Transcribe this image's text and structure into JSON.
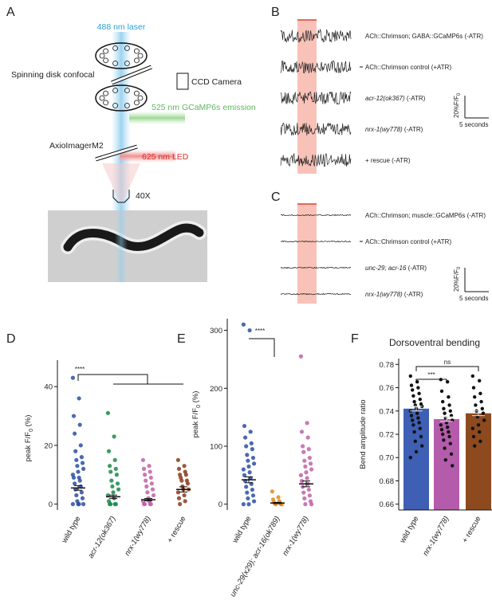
{
  "panel_a": {
    "letter": "A",
    "laser": "488 nm laser",
    "confocal": "Spinning disk confocal",
    "emission": "525 nm GCaMP6s emission",
    "camera": "CCD Camera",
    "microscope": "AxioImagerM2",
    "led": "625 nm LED",
    "objective": "40X"
  },
  "panel_b": {
    "letter": "B",
    "rows": [
      {
        "gene": "",
        "rest": "ACh::Chrimson; GABA::GCaMP6s (-ATR)"
      },
      {
        "gene": "",
        "rest": "ACh::Chrimson control (+ATR)"
      },
      {
        "gene": "acr-12(ok367)",
        "rest": " (-ATR)"
      },
      {
        "gene": "nrx-1(wy778)",
        "rest": " (-ATR)"
      },
      {
        "gene": "",
        "rest": "+ rescue (-ATR)"
      }
    ],
    "scale_y": "20%",
    "scale_unit": "F/F",
    "scale_sub": "0",
    "scale_x": "5 seconds"
  },
  "panel_c": {
    "letter": "C",
    "rows": [
      {
        "gene": "",
        "rest": "ACh::Chrimson; muscle::GCaMP6s (-ATR)"
      },
      {
        "gene": "",
        "rest": "ACh::Chrimson control (+ATR)"
      },
      {
        "gene": "unc-29; acr-16",
        "rest": " (-ATR)"
      },
      {
        "gene": "nrx-1(wy778)",
        "rest": " (-ATR)"
      }
    ],
    "scale_y": "20%",
    "scale_unit": "F/F",
    "scale_sub": "0",
    "scale_x": "5 seconds"
  },
  "chart_data": [
    {
      "type": "strip",
      "letter": "D",
      "ylabel": "peak  F/F",
      "ylabel_sub": "0",
      "ylabel_unit": " (%)",
      "categories": [
        "wild type",
        "acr-12(ok367)",
        "nrx-1(wy778)",
        "+ rescue"
      ],
      "colors": [
        "#2b4fa2",
        "#1a8a4a",
        "#c060a8",
        "#8b3a1a"
      ],
      "points": [
        [
          43,
          36,
          30,
          27,
          24,
          20,
          18,
          16,
          15,
          14,
          13,
          12,
          11,
          10,
          9,
          9,
          8,
          7,
          6,
          5,
          4,
          3,
          2,
          1,
          0,
          0,
          0,
          0
        ],
        [
          31,
          23,
          18,
          15,
          13,
          12,
          11,
          10,
          8,
          7,
          6,
          5,
          4,
          3,
          2,
          1,
          0,
          0,
          0,
          0
        ],
        [
          15,
          13,
          12,
          11,
          10,
          9,
          8,
          7,
          6,
          5,
          4,
          3,
          2,
          1,
          1,
          0,
          0,
          0,
          0
        ],
        [
          15,
          13,
          12,
          11,
          10,
          10,
          9,
          8,
          8,
          7,
          6,
          5,
          5,
          4,
          3,
          2,
          1,
          0
        ]
      ],
      "means": [
        5.5,
        2.5,
        1.5,
        5
      ],
      "errors": [
        0.8,
        0.6,
        0.4,
        0.9
      ],
      "ylim": [
        -2,
        49
      ],
      "yticks": [
        0,
        20,
        40
      ],
      "significance": "****"
    },
    {
      "type": "strip",
      "letter": "E",
      "ylabel": "peak  F/F",
      "ylabel_sub": "0",
      "ylabel_unit": " (%)",
      "categories": [
        "wild type",
        "unc-29(x29); acr-16(ok789)",
        "nrx-1(wy778)"
      ],
      "colors": [
        "#2b4fa2",
        "#e08a1e",
        "#c060a8"
      ],
      "points": [
        [
          310,
          300,
          135,
          125,
          115,
          105,
          100,
          95,
          85,
          80,
          75,
          70,
          65,
          60,
          55,
          50,
          45,
          40,
          35,
          30,
          25,
          20,
          15,
          10,
          5,
          0,
          0
        ],
        [
          22,
          12,
          8,
          5,
          3,
          2,
          1,
          0,
          0,
          0
        ],
        [
          255,
          140,
          125,
          115,
          100,
          95,
          90,
          80,
          75,
          70,
          65,
          60,
          55,
          50,
          45,
          40,
          35,
          30,
          25,
          20,
          15,
          10,
          5,
          0,
          0
        ]
      ],
      "means": [
        42,
        2,
        35
      ],
      "errors": [
        5,
        1,
        5
      ],
      "ylim": [
        -10,
        320
      ],
      "yticks": [
        0,
        100,
        200,
        300
      ],
      "significance": "****"
    },
    {
      "type": "bar",
      "letter": "F",
      "title": "Dorsoventral bending",
      "ylabel": "Bend amplitude ratio",
      "categories": [
        "wild type",
        "nrx-1(wy778)",
        "+ rescue"
      ],
      "colors": [
        "#3f5fb5",
        "#b45cab",
        "#8d4a1e"
      ],
      "points": [
        [
          0.77,
          0.765,
          0.762,
          0.76,
          0.758,
          0.755,
          0.753,
          0.75,
          0.748,
          0.746,
          0.745,
          0.744,
          0.742,
          0.74,
          0.738,
          0.736,
          0.734,
          0.732,
          0.73,
          0.728,
          0.725,
          0.722,
          0.718,
          0.714,
          0.71,
          0.705,
          0.7
        ],
        [
          0.767,
          0.765,
          0.757,
          0.752,
          0.748,
          0.745,
          0.742,
          0.74,
          0.738,
          0.736,
          0.734,
          0.732,
          0.73,
          0.728,
          0.726,
          0.724,
          0.722,
          0.72,
          0.718,
          0.715,
          0.712,
          0.708,
          0.703,
          0.698,
          0.693
        ],
        [
          0.77,
          0.766,
          0.76,
          0.755,
          0.752,
          0.748,
          0.745,
          0.742,
          0.74,
          0.738,
          0.735,
          0.732,
          0.728,
          0.725,
          0.722,
          0.718,
          0.714,
          0.71
        ]
      ],
      "values": [
        0.742,
        0.733,
        0.738
      ],
      "errors": [
        0.002,
        0.002,
        0.002
      ],
      "ylim": [
        0.655,
        0.785
      ],
      "yticks": [
        0.66,
        {
          "value": 0.68,
          "label": "0.68"
        },
        {
          "value": 0.7,
          "label": "0.70"
        },
        0.72,
        0.74,
        0.76,
        0.78
      ],
      "significance": [
        "***",
        "ns"
      ]
    }
  ]
}
